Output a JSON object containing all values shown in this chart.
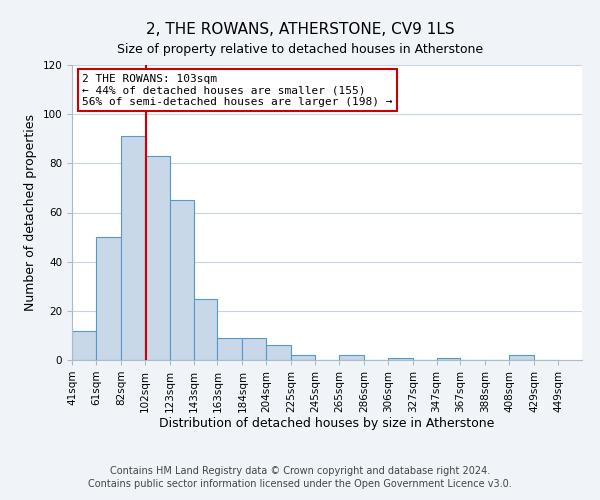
{
  "title": "2, THE ROWANS, ATHERSTONE, CV9 1LS",
  "subtitle": "Size of property relative to detached houses in Atherstone",
  "xlabel": "Distribution of detached houses by size in Atherstone",
  "ylabel": "Number of detached properties",
  "bar_left_edges": [
    41,
    61,
    82,
    102,
    123,
    143,
    163,
    184,
    204,
    225,
    245,
    265,
    286,
    306,
    327,
    347,
    367,
    388,
    408,
    429
  ],
  "bar_widths": [
    20,
    21,
    20,
    21,
    20,
    20,
    21,
    20,
    21,
    20,
    20,
    21,
    20,
    21,
    20,
    20,
    21,
    20,
    21,
    20
  ],
  "bar_heights": [
    12,
    50,
    91,
    83,
    65,
    25,
    9,
    9,
    6,
    2,
    0,
    2,
    0,
    1,
    0,
    1,
    0,
    0,
    2,
    0
  ],
  "bar_color": "#c8d8e8",
  "bar_edgecolor": "#5599cc",
  "marker_x": 103,
  "marker_color": "#cc0000",
  "annotation_line1": "2 THE ROWANS: 103sqm",
  "annotation_line2": "← 44% of detached houses are smaller (155)",
  "annotation_line3": "56% of semi-detached houses are larger (198) →",
  "annotation_box_edgecolor": "#cc0000",
  "annotation_box_facecolor": "#ffffff",
  "ylim": [
    0,
    120
  ],
  "yticks": [
    0,
    20,
    40,
    60,
    80,
    100,
    120
  ],
  "xtick_labels": [
    "41sqm",
    "61sqm",
    "82sqm",
    "102sqm",
    "123sqm",
    "143sqm",
    "163sqm",
    "184sqm",
    "204sqm",
    "225sqm",
    "245sqm",
    "265sqm",
    "286sqm",
    "306sqm",
    "327sqm",
    "347sqm",
    "367sqm",
    "388sqm",
    "408sqm",
    "429sqm",
    "449sqm"
  ],
  "xtick_positions": [
    41,
    61,
    82,
    102,
    123,
    143,
    163,
    184,
    204,
    225,
    245,
    265,
    286,
    306,
    327,
    347,
    367,
    388,
    408,
    429,
    449
  ],
  "footer_line1": "Contains HM Land Registry data © Crown copyright and database right 2024.",
  "footer_line2": "Contains public sector information licensed under the Open Government Licence v3.0.",
  "background_color": "#f0f4f8",
  "plot_background": "#ffffff",
  "grid_color": "#c8d4e0",
  "title_fontsize": 11,
  "subtitle_fontsize": 9,
  "axis_label_fontsize": 9,
  "tick_fontsize": 7.5,
  "footer_fontsize": 7,
  "annotation_fontsize": 8
}
